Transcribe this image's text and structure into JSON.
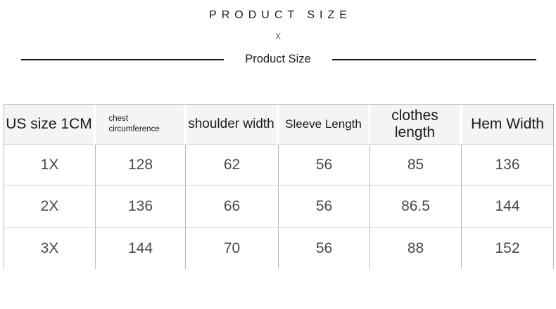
{
  "header": {
    "title": "P R O D U C T   S I Z E",
    "title_plain": "PRODUCT SIZE",
    "separator": "X",
    "subtitle": "Product Size"
  },
  "chart_data": {
    "type": "table",
    "title": "PRODUCT SIZE",
    "subtitle": "Product Size",
    "columns": [
      "US size 1CM",
      "chest circumference",
      "shoulder width",
      "Sleeve Length",
      "clothes length",
      "Hem Width"
    ],
    "rows": [
      [
        "1X",
        "128",
        "62",
        "56",
        "85",
        "136"
      ],
      [
        "2X",
        "136",
        "66",
        "56",
        "86.5",
        "144"
      ],
      [
        "3X",
        "144",
        "70",
        "56",
        "88",
        "152"
      ]
    ],
    "layout_hints": {
      "header_background": "#f4f4f4",
      "grid": "on",
      "bottom_border": "none"
    }
  }
}
